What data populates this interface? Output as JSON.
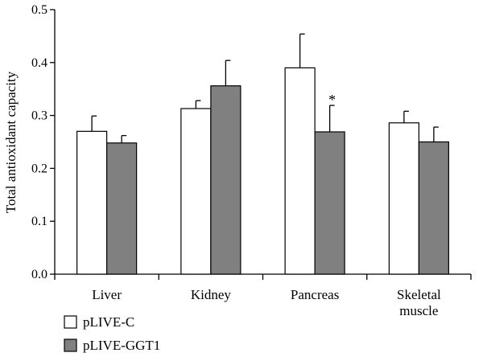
{
  "chart_data": {
    "type": "bar",
    "ylabel": "Total antioxidant capacity",
    "xlabel": "",
    "ylim": [
      0,
      0.5
    ],
    "yticks": [
      "0.0",
      "0.1",
      "0.2",
      "0.3",
      "0.4",
      "0.5"
    ],
    "categories": [
      [
        "Liver"
      ],
      [
        "Kidney"
      ],
      [
        "Pancreas"
      ],
      [
        "Skeletal",
        "muscle"
      ]
    ],
    "series": [
      {
        "name": "pLIVE-C",
        "color": "#ffffff",
        "values": [
          0.27,
          0.313,
          0.39,
          0.286
        ],
        "errors": [
          0.029,
          0.015,
          0.064,
          0.022
        ]
      },
      {
        "name": "pLIVE-GGT1",
        "color": "#808080",
        "values": [
          0.248,
          0.356,
          0.269,
          0.25
        ],
        "errors": [
          0.014,
          0.048,
          0.05,
          0.028
        ]
      }
    ],
    "annotations": [
      {
        "text": "*",
        "category": 2,
        "series": 1
      }
    ],
    "legend_position": "bottom-left"
  }
}
